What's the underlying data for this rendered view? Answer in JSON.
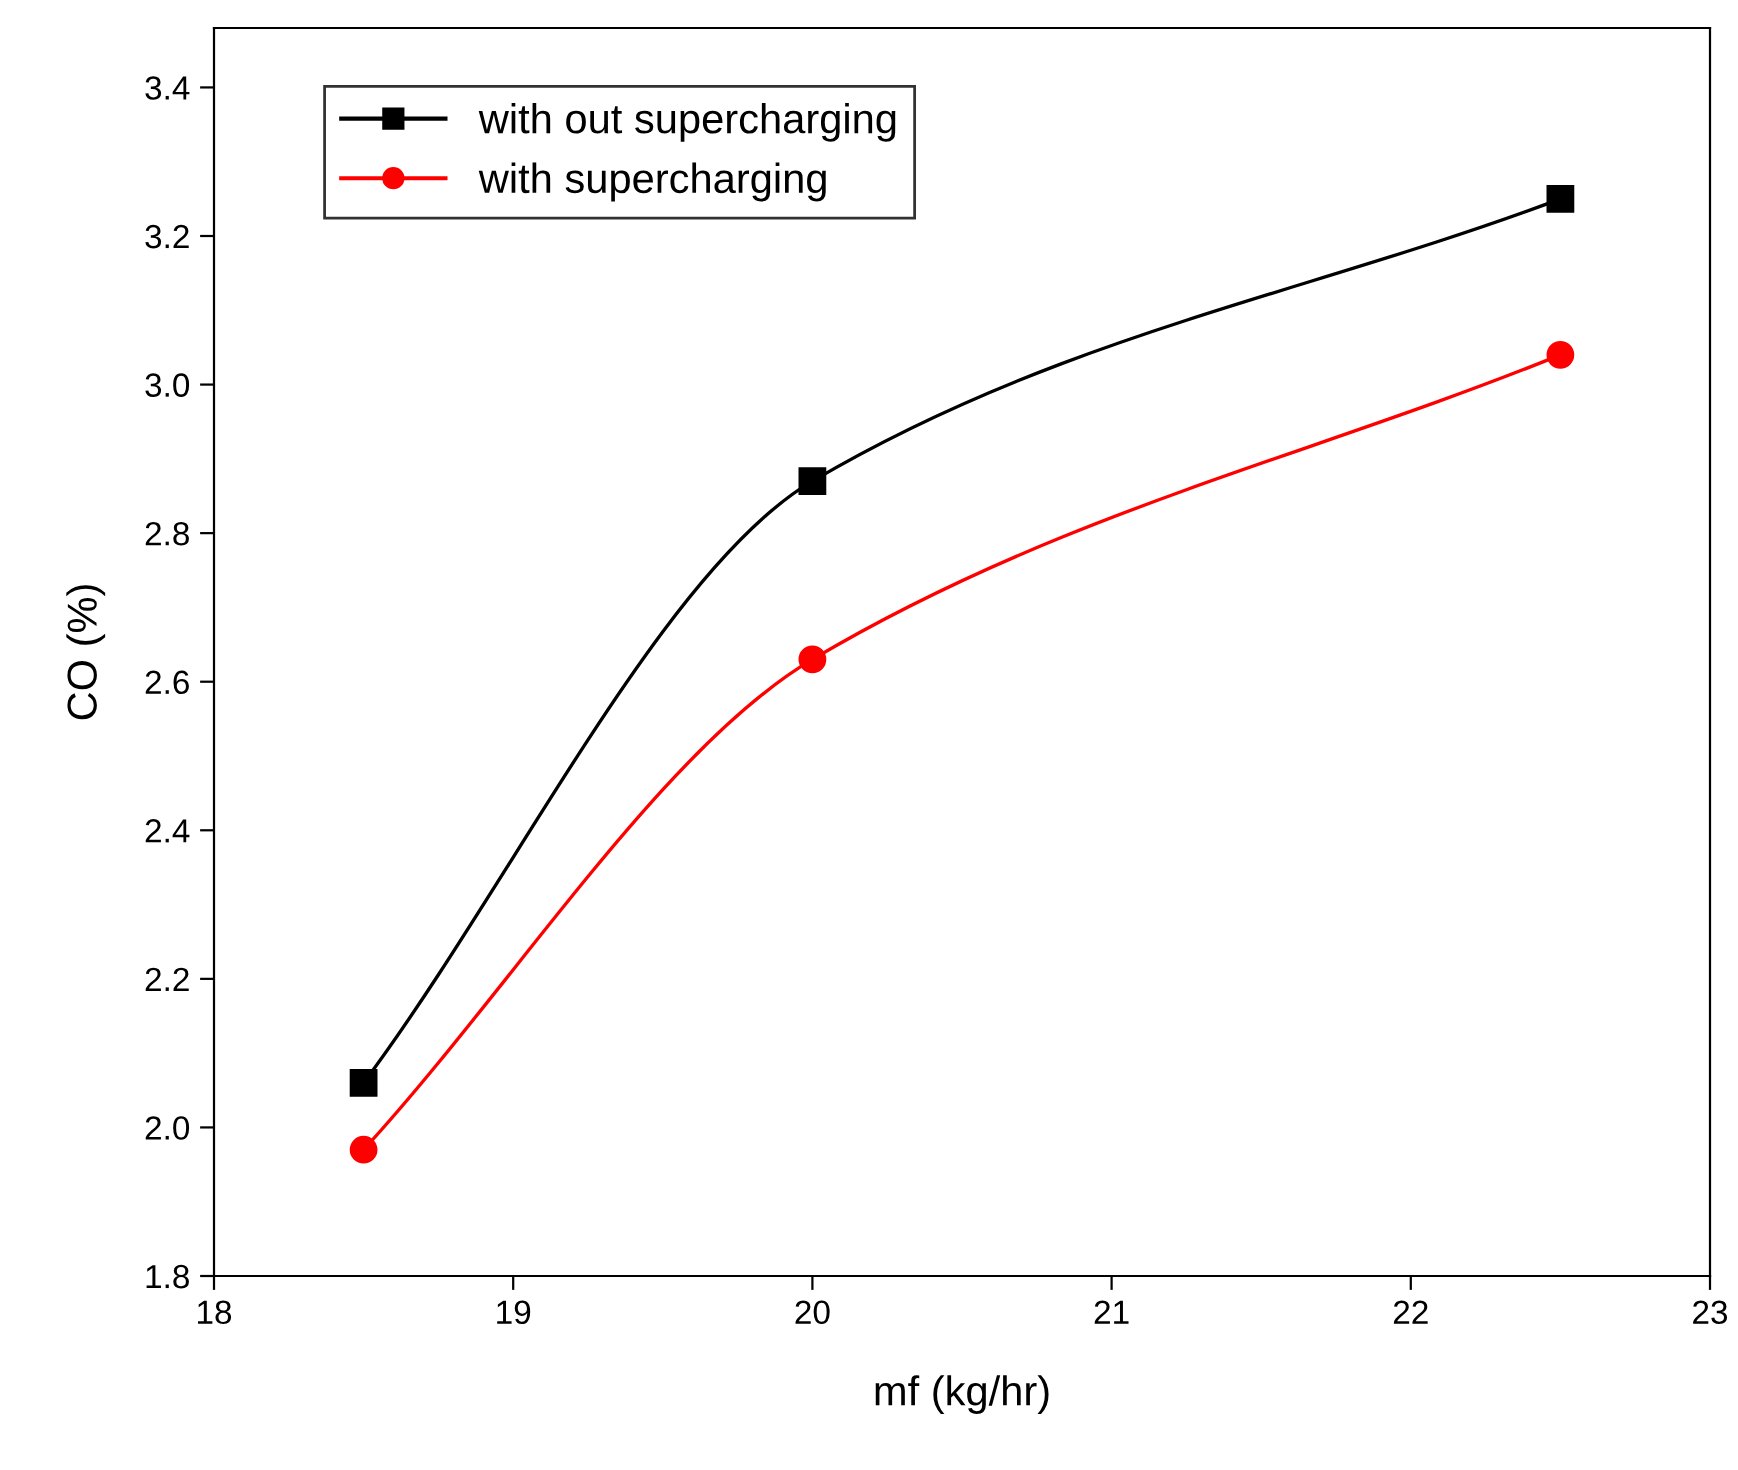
{
  "chart_data": {
    "type": "line",
    "xlabel": "mf (kg/hr)",
    "ylabel": "CO (%)",
    "x": [
      18.5,
      20,
      22.5
    ],
    "series": [
      {
        "name": "with out supercharging",
        "color": "#000000",
        "marker": "square",
        "values": [
          2.06,
          2.87,
          3.25
        ]
      },
      {
        "name": "with supercharging",
        "color": "#ff0000",
        "marker": "circle",
        "values": [
          1.97,
          2.63,
          3.04
        ]
      }
    ],
    "xlim": [
      18,
      23
    ],
    "xticks": [
      18,
      19,
      20,
      21,
      22,
      23
    ],
    "ylim": [
      1.8,
      3.48
    ],
    "yticks": [
      {
        "value": 1.8,
        "label": "1.8"
      },
      {
        "value": 2.0,
        "label": "2.0"
      },
      {
        "value": 2.2,
        "label": "2.2"
      },
      {
        "value": 2.4,
        "label": "2.4"
      },
      {
        "value": 2.6,
        "label": "2.6"
      },
      {
        "value": 2.8,
        "label": "2.8"
      },
      {
        "value": 3.0,
        "label": "3.0"
      },
      {
        "value": 3.2,
        "label": "3.2"
      },
      {
        "value": 3.4,
        "label": "3.4"
      }
    ],
    "grid": false,
    "legend": "top left",
    "line_style": "solid"
  }
}
